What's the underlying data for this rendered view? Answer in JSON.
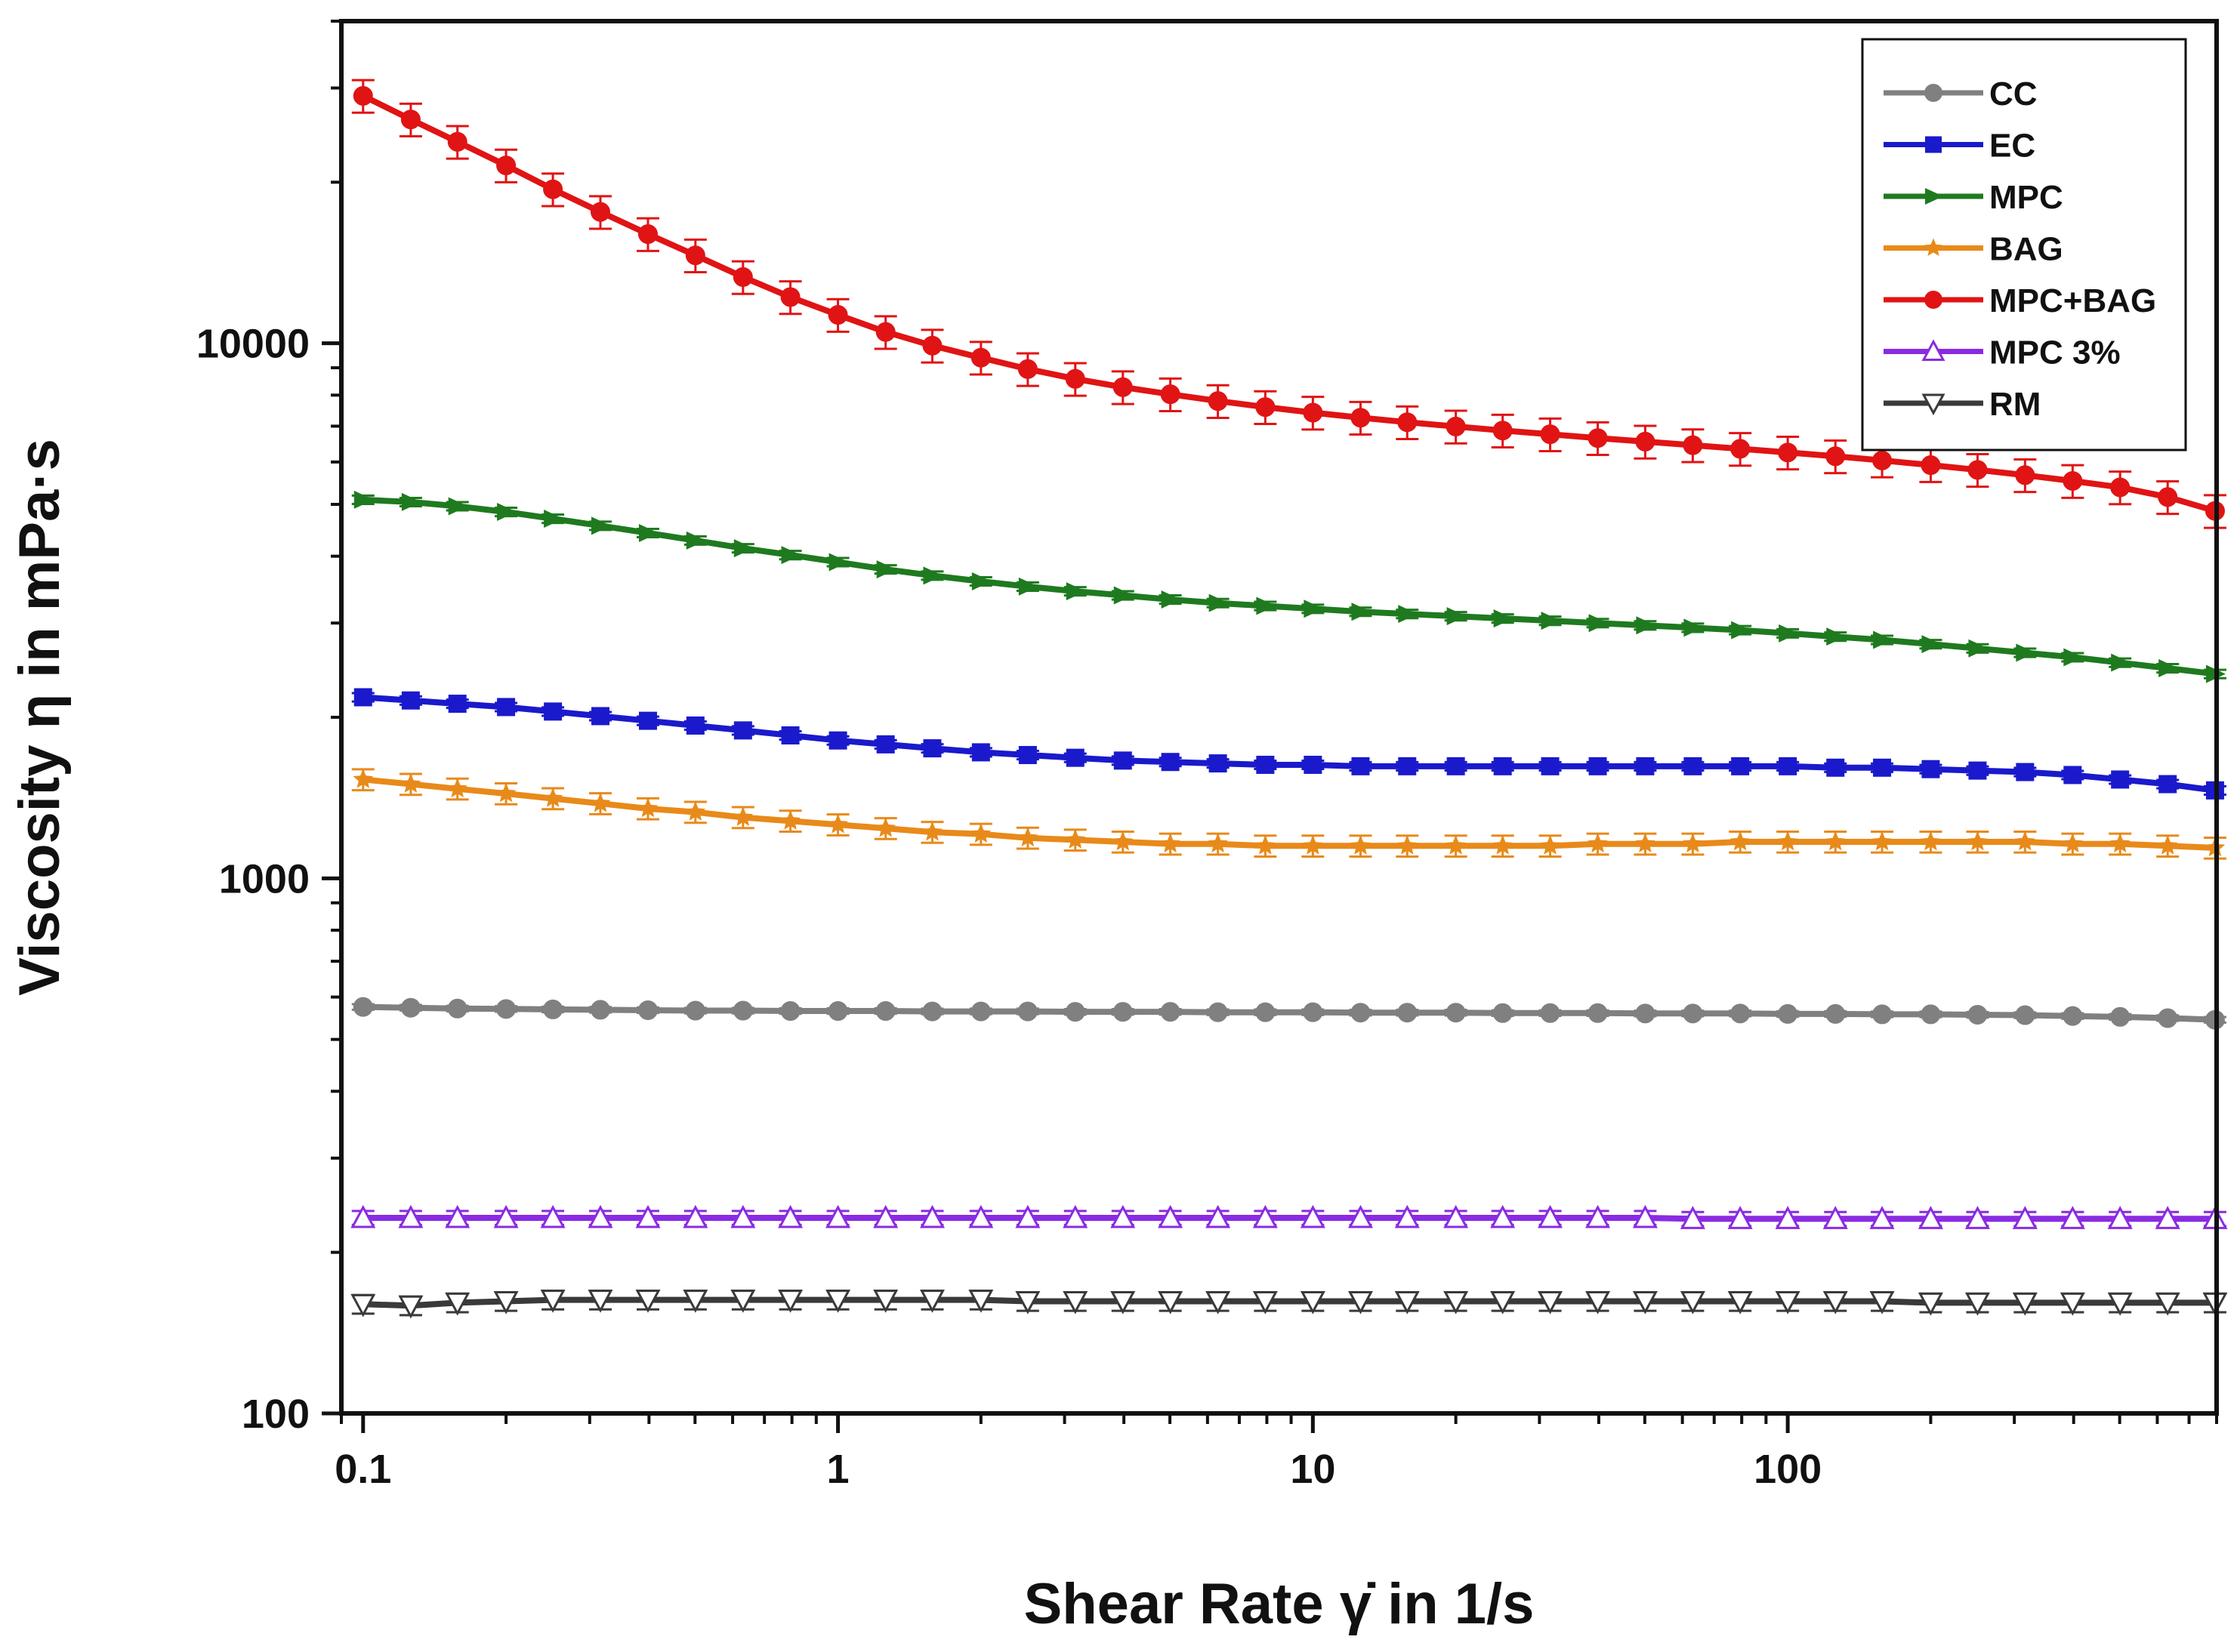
{
  "chart_data": {
    "type": "line",
    "title": "",
    "xlabel": "Shear Rate γ̇ in 1/s",
    "ylabel": "Viscosity η in mPa·s",
    "xscale": "log",
    "yscale": "log",
    "xlim": [
      0.09,
      800
    ],
    "ylim": [
      100,
      40000
    ],
    "x_ticks": [
      0.1,
      1,
      10,
      100
    ],
    "x_tick_labels": [
      "0.1",
      "1",
      "10",
      "100"
    ],
    "y_ticks": [
      100,
      1000,
      10000
    ],
    "y_tick_labels": [
      "100",
      "1000",
      "10000"
    ],
    "legend_position": "top-right",
    "x": [
      0.1,
      0.126,
      0.158,
      0.2,
      0.251,
      0.316,
      0.398,
      0.501,
      0.631,
      0.794,
      1,
      1.26,
      1.58,
      2,
      2.51,
      3.16,
      3.98,
      5.01,
      6.31,
      7.94,
      10,
      12.6,
      15.8,
      20,
      25.1,
      31.6,
      39.8,
      50.1,
      63.1,
      79.4,
      100,
      126,
      158,
      200,
      251,
      316,
      398,
      501,
      631,
      794
    ],
    "series": [
      {
        "name": "CC",
        "color": "#808080",
        "marker": "circle",
        "values": [
          575,
          573,
          571,
          570,
          569,
          568,
          567,
          566,
          566,
          565,
          565,
          565,
          564,
          564,
          564,
          563,
          563,
          563,
          562,
          562,
          562,
          561,
          561,
          561,
          560,
          560,
          560,
          559,
          559,
          559,
          558,
          558,
          557,
          557,
          556,
          555,
          553,
          551,
          548,
          544
        ]
      },
      {
        "name": "EC",
        "color": "#1a1acc",
        "marker": "square",
        "values": [
          2180,
          2150,
          2120,
          2090,
          2050,
          2010,
          1970,
          1930,
          1890,
          1850,
          1810,
          1780,
          1750,
          1720,
          1700,
          1680,
          1660,
          1650,
          1640,
          1630,
          1630,
          1620,
          1620,
          1620,
          1620,
          1620,
          1620,
          1620,
          1620,
          1620,
          1620,
          1610,
          1610,
          1600,
          1590,
          1580,
          1560,
          1530,
          1500,
          1460
        ]
      },
      {
        "name": "MPC",
        "color": "#1f7a1f",
        "marker": "triangle-right",
        "values": [
          5100,
          5050,
          4960,
          4840,
          4700,
          4560,
          4420,
          4280,
          4140,
          4020,
          3900,
          3780,
          3680,
          3590,
          3510,
          3440,
          3380,
          3320,
          3270,
          3230,
          3190,
          3150,
          3120,
          3090,
          3060,
          3030,
          3000,
          2970,
          2940,
          2910,
          2870,
          2830,
          2790,
          2740,
          2690,
          2640,
          2590,
          2530,
          2470,
          2410
        ]
      },
      {
        "name": "BAG",
        "color": "#e88a1a",
        "marker": "star",
        "values": [
          1530,
          1500,
          1470,
          1440,
          1410,
          1380,
          1350,
          1330,
          1300,
          1280,
          1260,
          1240,
          1220,
          1210,
          1190,
          1180,
          1170,
          1160,
          1160,
          1150,
          1150,
          1150,
          1150,
          1150,
          1150,
          1150,
          1160,
          1160,
          1160,
          1170,
          1170,
          1170,
          1170,
          1170,
          1170,
          1170,
          1160,
          1160,
          1150,
          1140
        ]
      },
      {
        "name": "MPC+BAG",
        "color": "#e01414",
        "marker": "circle",
        "values": [
          29000,
          26200,
          23800,
          21500,
          19400,
          17600,
          16000,
          14600,
          13300,
          12200,
          11300,
          10500,
          9900,
          9400,
          8950,
          8580,
          8280,
          8030,
          7800,
          7600,
          7420,
          7260,
          7120,
          6990,
          6870,
          6760,
          6650,
          6550,
          6450,
          6350,
          6250,
          6150,
          6040,
          5920,
          5800,
          5670,
          5530,
          5380,
          5160,
          4860
        ]
      },
      {
        "name": "MPC 3%",
        "color": "#8a2be2",
        "marker": "triangle-up-open",
        "values": [
          232,
          232,
          232,
          232,
          232,
          232,
          232,
          232,
          232,
          232,
          232,
          232,
          232,
          232,
          232,
          232,
          232,
          232,
          232,
          232,
          232,
          232,
          232,
          232,
          232,
          232,
          232,
          232,
          231,
          231,
          231,
          231,
          231,
          231,
          231,
          231,
          231,
          231,
          231,
          231
        ]
      },
      {
        "name": "RM",
        "color": "#3a3a3a",
        "marker": "triangle-down-open",
        "values": [
          160,
          159,
          161,
          162,
          163,
          163,
          163,
          163,
          163,
          163,
          163,
          163,
          163,
          163,
          162,
          162,
          162,
          162,
          162,
          162,
          162,
          162,
          162,
          162,
          162,
          162,
          162,
          162,
          162,
          162,
          162,
          162,
          162,
          161,
          161,
          161,
          161,
          161,
          161,
          161
        ]
      }
    ]
  }
}
